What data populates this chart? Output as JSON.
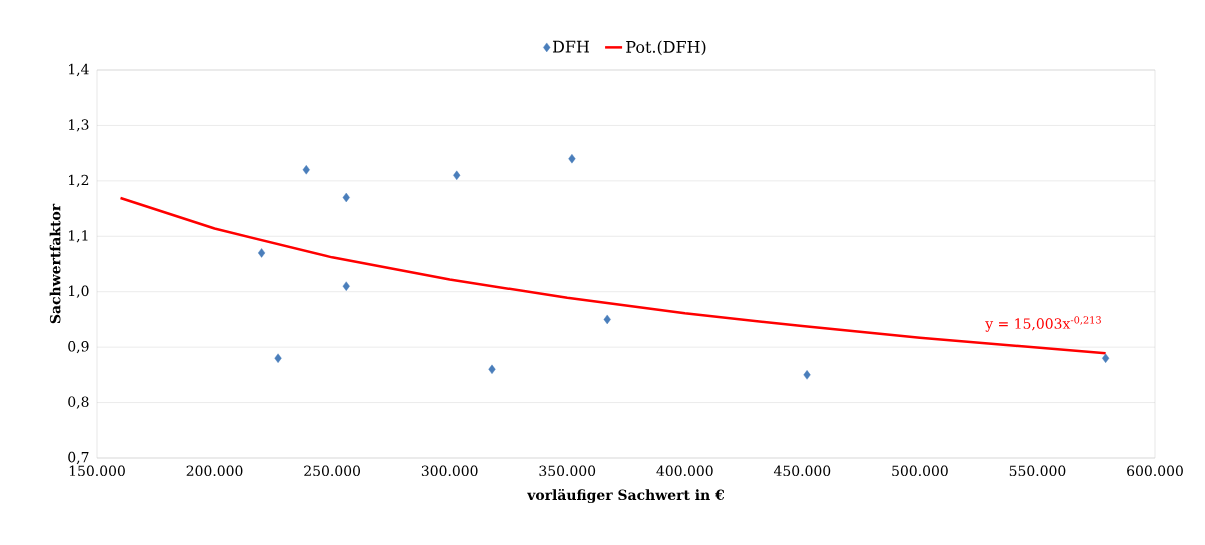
{
  "chart_data": {
    "type": "scatter",
    "xlabel": "vorläufiger Sachwert in €",
    "ylabel": "Sachwertfaktor",
    "series": [
      {
        "name": "DFH",
        "color": "#4a7ebb",
        "marker": "diamond",
        "x": [
          220000,
          227000,
          239000,
          256000,
          256000,
          303000,
          318000,
          352000,
          367000,
          452000,
          579000
        ],
        "values": [
          1.07,
          0.88,
          1.22,
          1.17,
          1.01,
          1.21,
          0.86,
          1.24,
          0.95,
          0.85,
          0.88
        ]
      },
      {
        "name": "Pot.(DFH)",
        "type": "line",
        "color": "#ff0000",
        "x": [
          160000,
          200000,
          250000,
          300000,
          350000,
          400000,
          450000,
          500000,
          579000
        ],
        "values": [
          1.169,
          1.114,
          1.062,
          1.022,
          0.989,
          0.961,
          0.938,
          0.917,
          0.889
        ]
      }
    ],
    "xlim": [
      150000,
      600000
    ],
    "ylim": [
      0.7,
      1.4
    ],
    "xticks": [
      {
        "value": 150000,
        "label": "150.000"
      },
      {
        "value": 200000,
        "label": "200.000"
      },
      {
        "value": 250000,
        "label": "250.000"
      },
      {
        "value": 300000,
        "label": "300.000"
      },
      {
        "value": 350000,
        "label": "350.000"
      },
      {
        "value": 400000,
        "label": "400.000"
      },
      {
        "value": 450000,
        "label": "450.000"
      },
      {
        "value": 500000,
        "label": "500.000"
      },
      {
        "value": 550000,
        "label": "550.000"
      },
      {
        "value": 600000,
        "label": "600.000"
      }
    ],
    "yticks": [
      {
        "value": 0.7,
        "label": "0,7"
      },
      {
        "value": 0.8,
        "label": "0,8"
      },
      {
        "value": 0.9,
        "label": "0,9"
      },
      {
        "value": 1.0,
        "label": "1,0"
      },
      {
        "value": 1.1,
        "label": "1,1"
      },
      {
        "value": 1.2,
        "label": "1,2"
      },
      {
        "value": 1.3,
        "label": "1,3"
      },
      {
        "value": 1.4,
        "label": "1,4"
      }
    ],
    "grid": "y",
    "legend": "top",
    "annotations": [
      "y = 15,003x$^{-0,213}$"
    ]
  }
}
